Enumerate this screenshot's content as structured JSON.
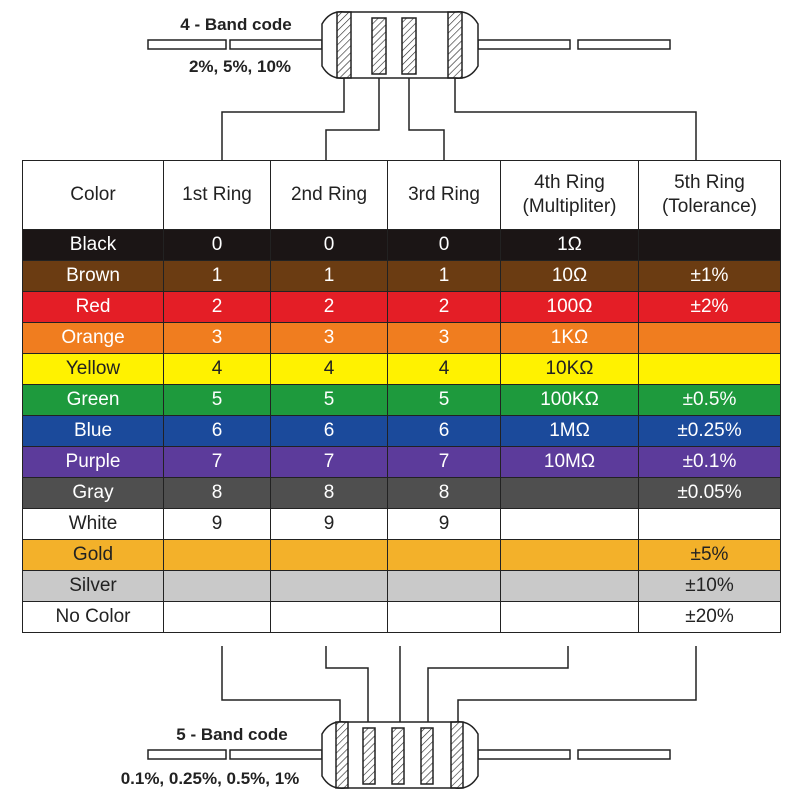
{
  "top_label": {
    "title": "4 - Band code",
    "tolerance": "2%, 5%, 10%"
  },
  "bottom_label": {
    "title": "5 - Band code",
    "tolerance": "0.1%, 0.25%, 0.5%, 1%"
  },
  "table": {
    "header": [
      "Color",
      "1st Ring",
      "2nd Ring",
      "3rd Ring",
      "4th Ring\n(Multipliter)",
      "5th Ring\n(Tolerance)"
    ],
    "rows": [
      {
        "color": "#1b1515",
        "text_color": "#ffffff",
        "cells": [
          "Black",
          "0",
          "0",
          "0",
          "1Ω",
          null
        ]
      },
      {
        "color": "#6b3c12",
        "text_color": "#ffffff",
        "cells": [
          "Brown",
          "1",
          "1",
          "1",
          "10Ω",
          "±1%"
        ]
      },
      {
        "color": "#e41e26",
        "text_color": "#ffffff",
        "cells": [
          "Red",
          "2",
          "2",
          "2",
          "100Ω",
          "±2%"
        ]
      },
      {
        "color": "#f07d1f",
        "text_color": "#ffffff",
        "cells": [
          "Orange",
          "3",
          "3",
          "3",
          "1KΩ",
          null
        ]
      },
      {
        "color": "#fff200",
        "text_color": "#222222",
        "cells": [
          "Yellow",
          "4",
          "4",
          "4",
          "10KΩ",
          null
        ]
      },
      {
        "color": "#1e9a3d",
        "text_color": "#ffffff",
        "cells": [
          "Green",
          "5",
          "5",
          "5",
          "100KΩ",
          "±0.5%"
        ]
      },
      {
        "color": "#1b4a9b",
        "text_color": "#ffffff",
        "cells": [
          "Blue",
          "6",
          "6",
          "6",
          "1MΩ",
          "±0.25%"
        ]
      },
      {
        "color": "#5c3b9b",
        "text_color": "#ffffff",
        "cells": [
          "Purple",
          "7",
          "7",
          "7",
          "10MΩ",
          "±0.1%"
        ]
      },
      {
        "color": "#4f4f4f",
        "text_color": "#ffffff",
        "cells": [
          "Gray",
          "8",
          "8",
          "8",
          null,
          "±0.05%"
        ]
      },
      {
        "color": "#ffffff",
        "text_color": "#222222",
        "cells": [
          "White",
          "9",
          "9",
          "9",
          null,
          null
        ]
      },
      {
        "color": "#f3b12a",
        "text_color": "#222222",
        "cells": [
          "Gold",
          null,
          null,
          null,
          null,
          "±5%"
        ]
      },
      {
        "color": "#c9c9c9",
        "text_color": "#222222",
        "cells": [
          "Silver",
          null,
          null,
          null,
          null,
          "±10%"
        ]
      },
      {
        "color": "#ffffff",
        "text_color": "#222222",
        "cells": [
          "No Color",
          null,
          null,
          null,
          null,
          "±20%"
        ]
      }
    ]
  }
}
